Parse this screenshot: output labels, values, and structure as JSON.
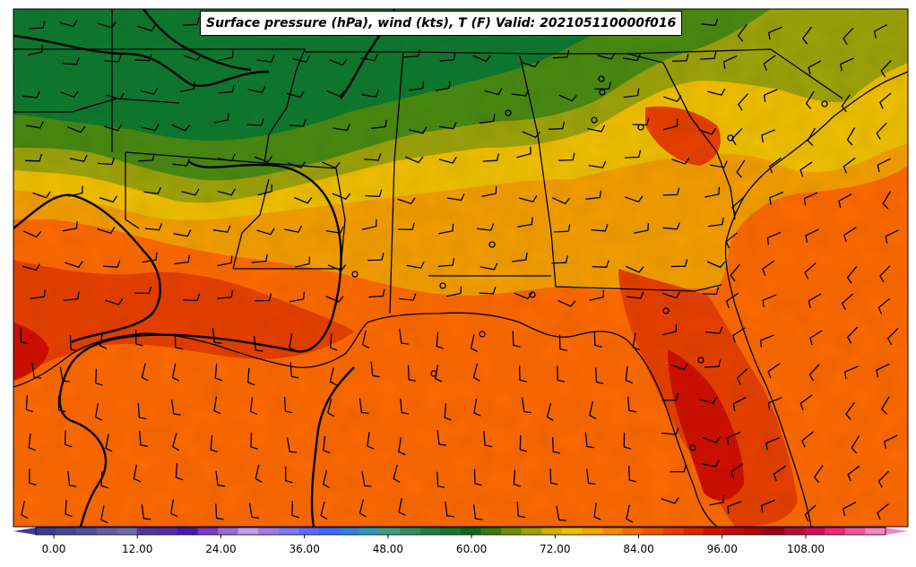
{
  "title": "Surface pressure (hPa), wind (kts), T (F) Valid: 202105110000f016",
  "colorbar": {
    "ticks": [
      "0.00",
      "12.00",
      "24.00",
      "36.00",
      "48.00",
      "60.00",
      "72.00",
      "84.00",
      "96.00",
      "108.00"
    ],
    "extend": "both",
    "colors": [
      "#3b3a9e",
      "#45459e",
      "#5050a4",
      "#5e5eaa",
      "#6a6ab0",
      "#4d3a9e",
      "#5a2ab0",
      "#4a1aa8",
      "#7a3ac8",
      "#9a6ae0",
      "#c59cf0",
      "#a07af0",
      "#7a7af5",
      "#5a6aff",
      "#3a6aff",
      "#2a82e0",
      "#2a9ac0",
      "#3aa080",
      "#2a9060",
      "#1a8048",
      "#0e7a36",
      "#0a6a1e",
      "#3a7a10",
      "#6a9008",
      "#a0a000",
      "#d0b000",
      "#f0c000",
      "#f5a500",
      "#f58a00",
      "#f06e00",
      "#ec5500",
      "#e63c00",
      "#dc2800",
      "#d01400",
      "#c20a0a",
      "#b0000a",
      "#9a0018",
      "#b0103a",
      "#d01060",
      "#ea2a80",
      "#f055a5",
      "#f585c5"
    ]
  },
  "temperature_fill": {
    "north_cool": "#0f7a2e",
    "mid_green": "#4a8a12",
    "olive": "#9ea30a",
    "yellow": "#f0c000",
    "light_orange": "#f59f00",
    "orange": "#ff6a00",
    "red_orange": "#e84000",
    "red": "#d01000"
  },
  "overlays": {
    "isobars": "black contours",
    "wind_barbs": "black barbs",
    "borders": "state and coastline outlines"
  }
}
